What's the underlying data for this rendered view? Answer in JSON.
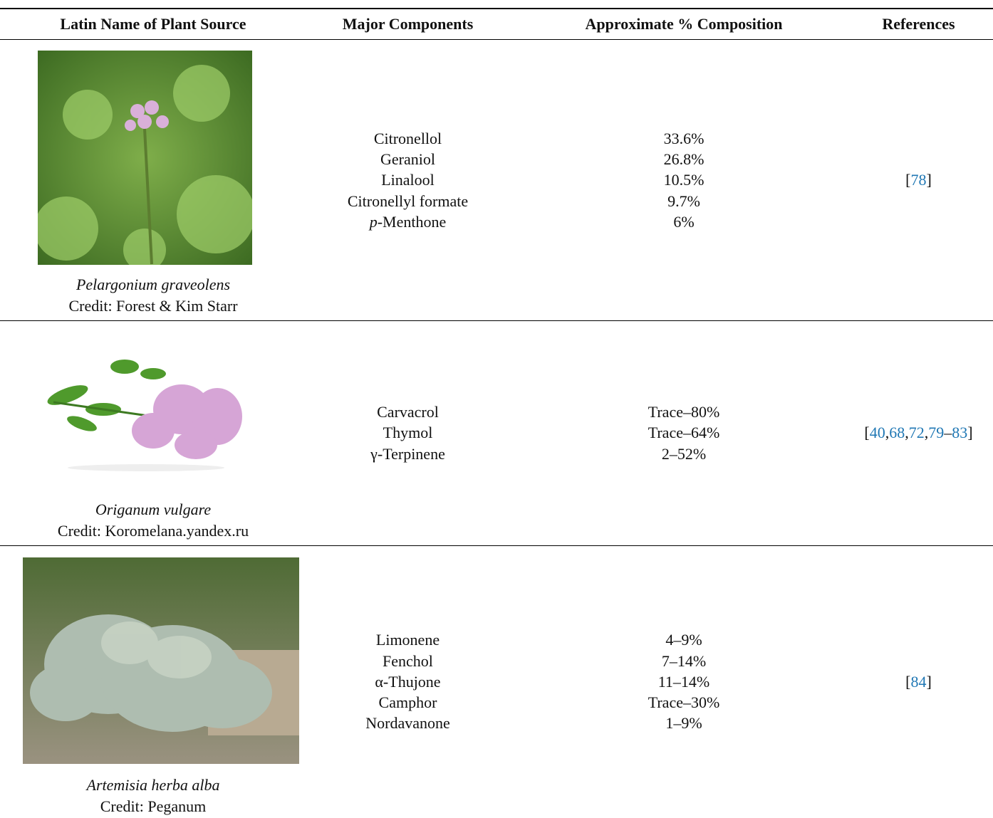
{
  "header": {
    "columns": [
      "Latin Name of Plant Source",
      "Major Components",
      "Approximate % Composition",
      "References"
    ]
  },
  "rows": [
    {
      "latin": "Pelargonium graveolens",
      "credit": "Credit: Forest & Kim Starr",
      "components": [
        "Citronellol",
        "Geraniol",
        "Linalool",
        "Citronellyl formate",
        {
          "prefix": "p",
          "name": "-Menthone"
        }
      ],
      "composition": [
        "33.6%",
        "26.8%",
        "10.5%",
        "9.7%",
        "6%"
      ],
      "references": [
        "[",
        "78",
        "]"
      ]
    },
    {
      "latin": "Origanum vulgare",
      "credit": "Credit: Koromelana.yandex.ru",
      "components": [
        "Carvacrol",
        "Thymol",
        "γ-Terpinene"
      ],
      "composition": [
        "Trace–80%",
        "Trace–64%",
        "2–52%"
      ],
      "references": [
        "[",
        "40",
        ",",
        "68",
        ",",
        "72",
        ",",
        "79",
        "–",
        "83",
        "]"
      ]
    },
    {
      "latin": "Artemisia herba alba",
      "credit": "Credit: Peganum",
      "components": [
        "Limonene",
        "Fenchol",
        "α-Thujone",
        "Camphor",
        "Nordavanone"
      ],
      "composition": [
        "4–9%",
        "7–14%",
        "11–14%",
        "Trace–30%",
        "1–9%"
      ],
      "references": [
        "[",
        "84",
        "]"
      ]
    }
  ]
}
